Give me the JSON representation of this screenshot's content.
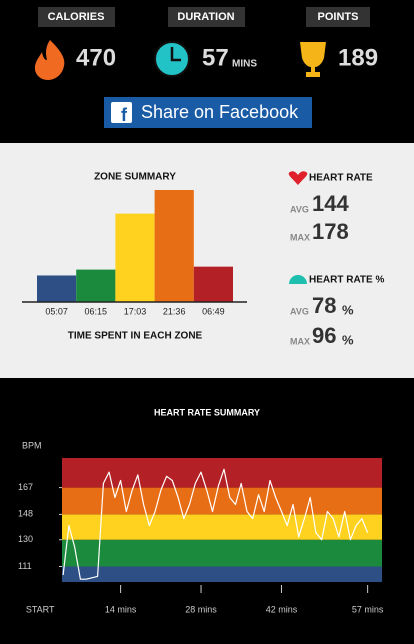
{
  "stats": [
    {
      "label": "CALORIES",
      "value": "470"
    },
    {
      "label": "DURATION",
      "value": "57",
      "unit": "MINS"
    },
    {
      "label": "POINTS",
      "value": "189"
    }
  ],
  "share_button": "Share on Facebook",
  "zone_chart": {
    "type": "bar",
    "title": "ZONE SUMMARY",
    "x_label": "TIME SPENT IN EACH ZONE",
    "categories": [
      null,
      null,
      null,
      null,
      null
    ],
    "values": [
      5.117,
      6.25,
      17.05,
      21.6,
      6.817
    ],
    "value_labels": [
      "05:07",
      "06:15",
      "17:03",
      "21:36",
      "06:49"
    ],
    "colors": [
      "#2d4f86",
      "#1c8a3c",
      "#ffd21f",
      "#e86e16",
      "#b32025"
    ]
  },
  "heart_rate": {
    "title": "HEART RATE",
    "avg_label": "AVG",
    "avg": "144",
    "max_label": "MAX",
    "max": "178"
  },
  "heart_rate_pct": {
    "title": "HEART RATE %",
    "avg_label": "AVG",
    "avg": "78",
    "max_label": "MAX",
    "max": "96",
    "unit": "%"
  },
  "chart_data": {
    "type": "line",
    "title": "HEART RATE SUMMARY",
    "y_label": "BPM",
    "x": [
      4,
      5,
      6,
      7,
      8,
      9,
      10,
      11,
      12,
      13,
      14,
      15,
      16,
      17,
      18,
      19,
      20,
      21,
      22,
      23,
      24,
      25,
      26,
      27,
      28,
      29,
      30,
      31,
      32,
      33,
      34,
      35,
      36,
      37,
      38,
      39,
      40,
      41,
      42,
      43,
      44,
      45,
      46,
      47,
      48,
      49,
      50,
      51,
      52,
      53,
      54,
      55,
      56,
      57
    ],
    "series": [
      {
        "name": null,
        "color": "#ffffff",
        "values": [
          105,
          140,
          125,
          102,
          102,
          103,
          104,
          170,
          178,
          160,
          172,
          150,
          165,
          176,
          155,
          140,
          150,
          165,
          175,
          172,
          160,
          145,
          155,
          170,
          178,
          165,
          150,
          168,
          180,
          160,
          155,
          170,
          150,
          145,
          162,
          150,
          172,
          160,
          150,
          140,
          155,
          132,
          145,
          160,
          135,
          130,
          150,
          145,
          132,
          150,
          130,
          140,
          145,
          135
        ]
      }
    ],
    "xlim": [
      3.8,
      59.5
    ],
    "xticks": [
      {
        "value": 0,
        "label": "START"
      },
      {
        "value": 14,
        "label": "14 mins"
      },
      {
        "value": 28,
        "label": "28 mins"
      },
      {
        "value": 42,
        "label": "42 mins"
      },
      {
        "value": 57,
        "label": "57 mins"
      }
    ],
    "ylim": [
      100,
      188
    ],
    "yticks": [
      111,
      130,
      148,
      167
    ],
    "zone_colors": [
      "#2d4f86",
      "#1c8a3c",
      "#ffd21f",
      "#e86e16",
      "#b32025"
    ]
  }
}
